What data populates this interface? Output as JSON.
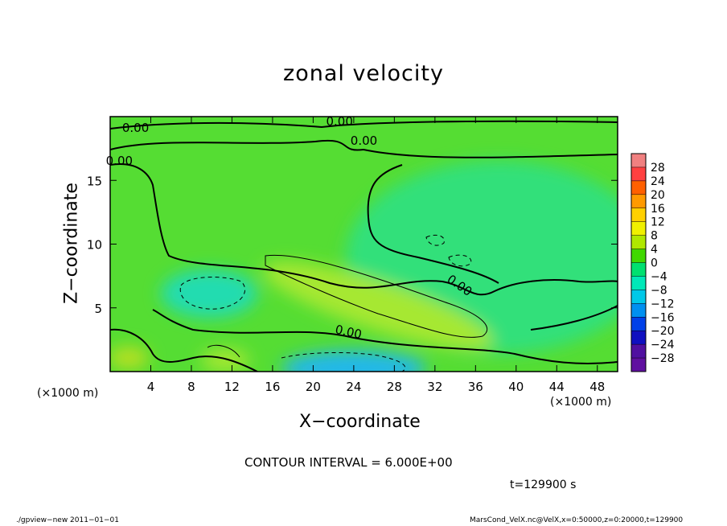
{
  "chart_data": {
    "type": "heatmap",
    "title": "zonal velocity",
    "xlabel": "X−coordinate",
    "ylabel": "Z−coordinate",
    "x_unit_label": "(×1000 m)",
    "xlim": [
      0,
      50
    ],
    "ylim": [
      0,
      20
    ],
    "x_ticks": [
      4,
      8,
      12,
      16,
      20,
      24,
      28,
      32,
      36,
      40,
      44,
      48
    ],
    "y_ticks": [
      5,
      10,
      15
    ],
    "contour_interval_text": "CONTOUR INTERVAL = 6.000E+00",
    "contour_labels": [
      "0.00",
      "0.00",
      "0.00",
      "0.00",
      "0.00",
      "0.00"
    ],
    "colorbar": {
      "levels": [
        "28",
        "24",
        "20",
        "16",
        "12",
        "8",
        "4",
        "0",
        "−4",
        "−8",
        "−12",
        "−16",
        "−20",
        "−24",
        "−28"
      ],
      "colors": [
        "#f08080",
        "#ff4040",
        "#ff6000",
        "#ff9a00",
        "#ffd000",
        "#f0f000",
        "#b0e800",
        "#40d800",
        "#00e070",
        "#00e8b8",
        "#00c8e8",
        "#0090f0",
        "#0040e8",
        "#1010c0",
        "#5010a0",
        "#6010a0"
      ]
    },
    "field_summary": {
      "background_value_range": [
        -4,
        4
      ],
      "positive_band": {
        "description_values": [
          4,
          8
        ],
        "x_range": [
          15,
          37
        ],
        "z_range": [
          3,
          9
        ]
      },
      "negative_core": {
        "values": [
          -12,
          -8
        ],
        "x_range": [
          17,
          33
        ],
        "z_range": [
          0,
          2
        ]
      },
      "negative_patch": {
        "values": [
          -8,
          -4
        ],
        "x_range": [
          6,
          14
        ],
        "z_range": [
          4,
          8
        ]
      }
    }
  },
  "annotations": {
    "time": "t=129900 s",
    "footer_left": "./gpview−new   2011−01−01",
    "footer_right": "MarsCond_VelX.nc@VelX,x=0:50000,z=0:20000,t=129900"
  }
}
